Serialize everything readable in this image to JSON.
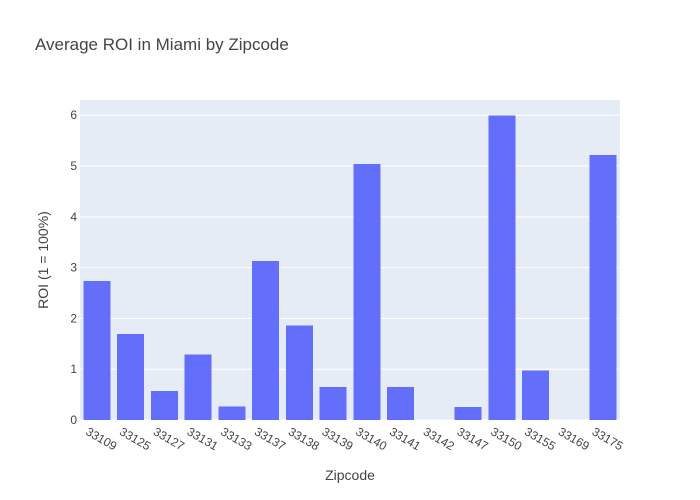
{
  "chart_data": {
    "type": "bar",
    "title": "Average ROI in Miami by Zipcode",
    "xlabel": "Zipcode",
    "ylabel": "ROI (1 = 100%)",
    "categories": [
      "33109",
      "33125",
      "33127",
      "33131",
      "33133",
      "33137",
      "33138",
      "33139",
      "33140",
      "33141",
      "33142",
      "33147",
      "33150",
      "33155",
      "33169",
      "33175"
    ],
    "values": [
      2.74,
      1.69,
      0.57,
      1.29,
      0.27,
      3.13,
      1.86,
      0.65,
      5.04,
      0.65,
      0.0,
      0.26,
      5.99,
      0.97,
      0.0,
      5.22
    ],
    "yticks": [
      0,
      1,
      2,
      3,
      4,
      5,
      6
    ],
    "ylim": [
      0,
      6.3
    ],
    "grid": true,
    "colors": {
      "bar": "#636efa",
      "plot_bg": "#e5ecf6",
      "paper_bg": "#ffffff",
      "text": "#444444"
    }
  }
}
